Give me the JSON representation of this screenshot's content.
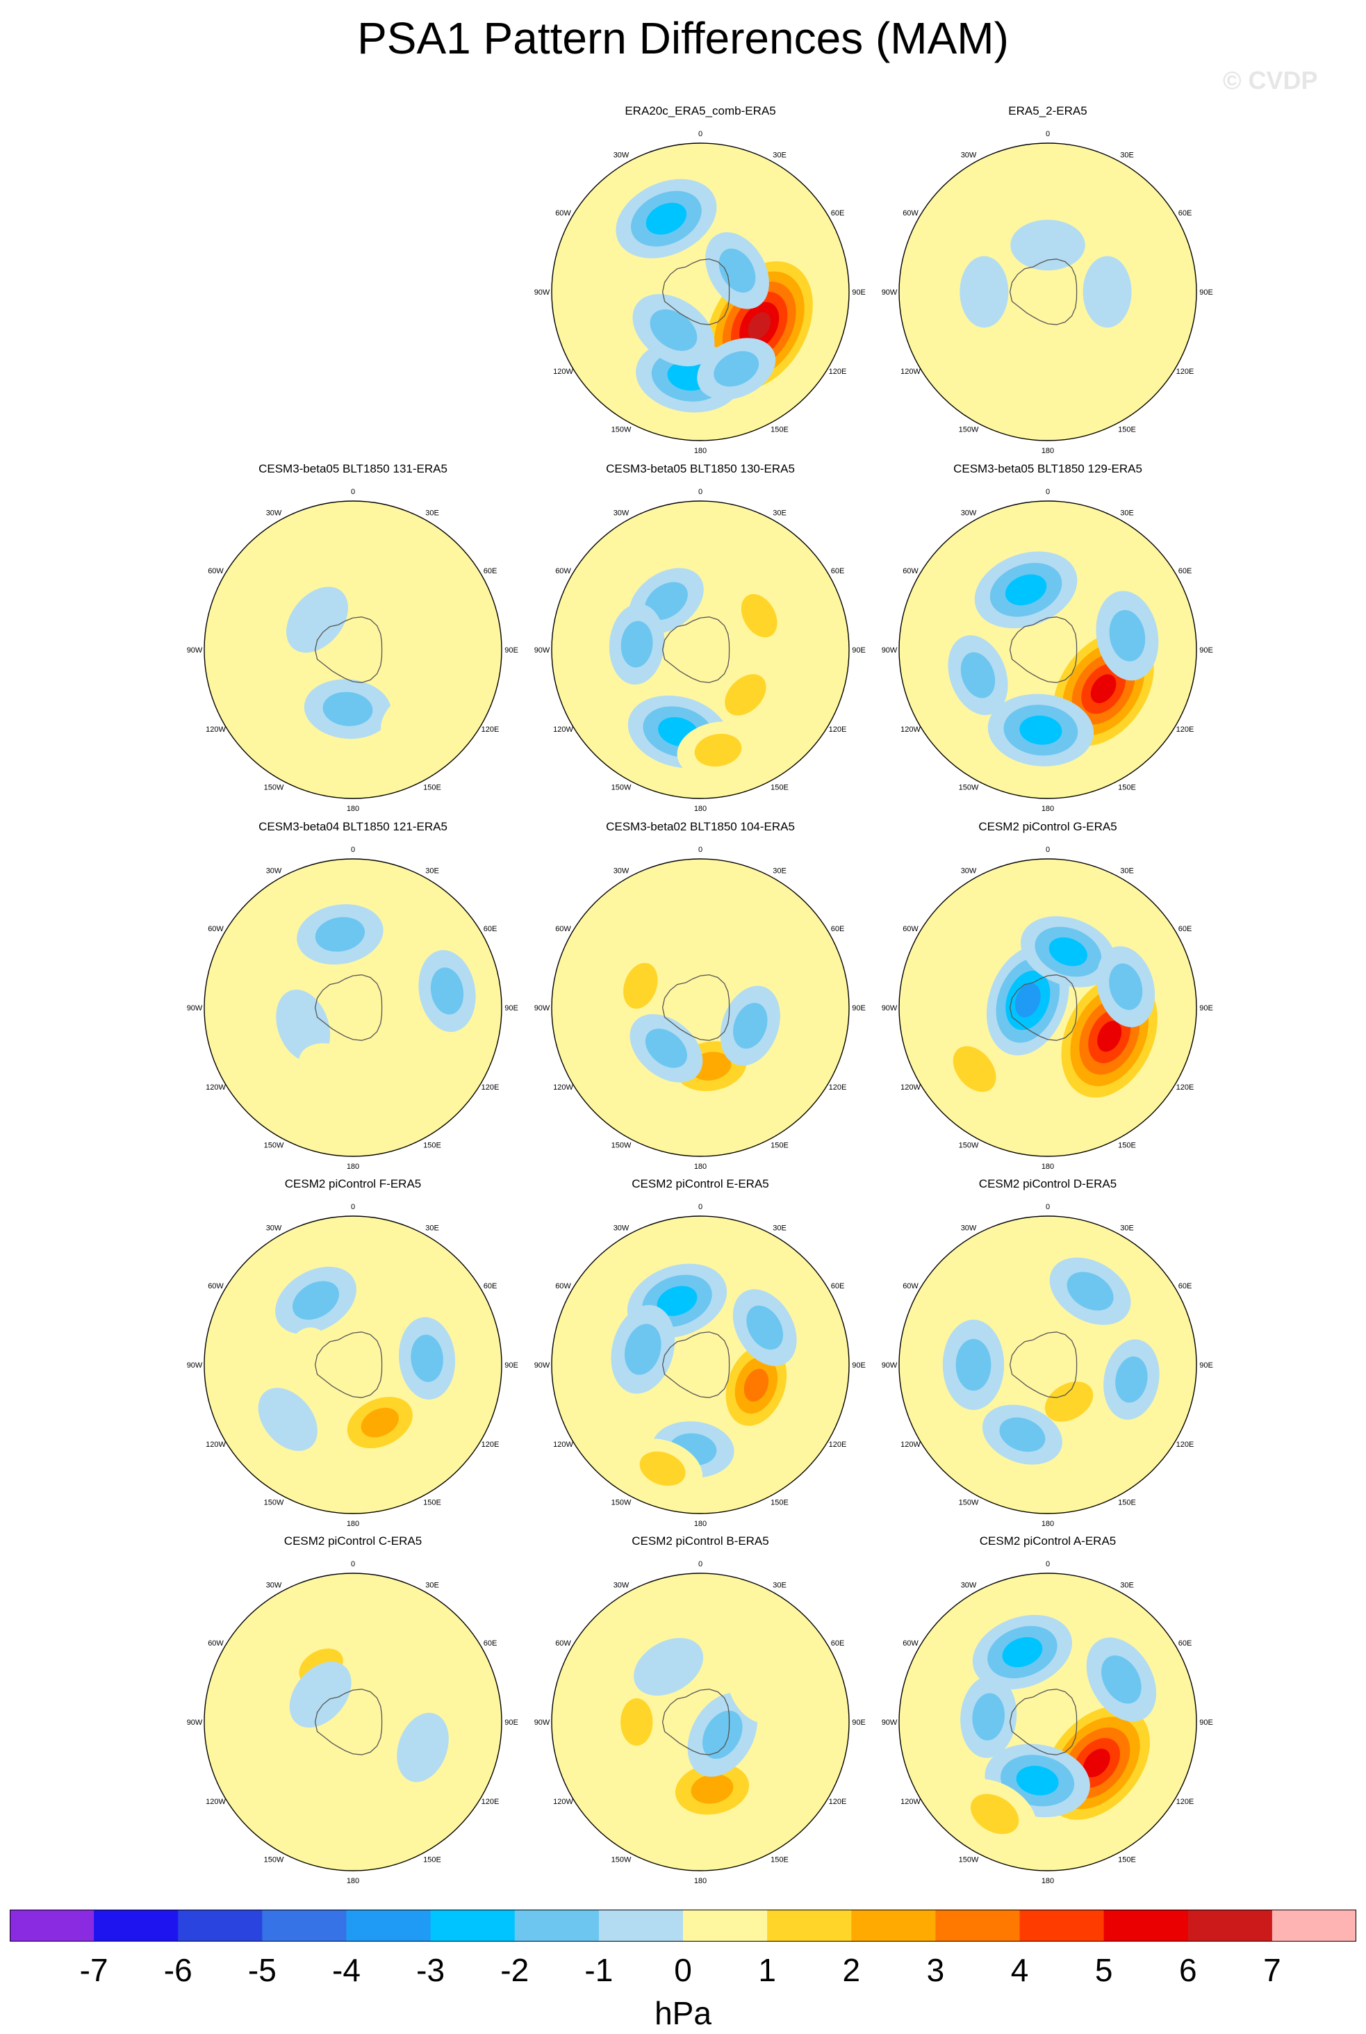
{
  "title": "PSA1 Pattern Differences (MAM)",
  "watermark": "© CVDP",
  "chart_data": {
    "type": "heatmap",
    "projection": "south polar stereographic",
    "variable": "sea level pressure difference",
    "units": "hPa",
    "colorbar": {
      "levels": [
        -7,
        -6,
        -5,
        -4,
        -3,
        -2,
        -1,
        0,
        1,
        2,
        3,
        4,
        5,
        6,
        7
      ],
      "tick_labels": [
        "-7",
        "-6",
        "-5",
        "-4",
        "-3",
        "-2",
        "-1",
        "0",
        "1",
        "2",
        "3",
        "4",
        "5",
        "6",
        "7"
      ],
      "colors": [
        "#8a2be2",
        "#1e14f0",
        "#2a44e0",
        "#3573e6",
        "#1f9bf5",
        "#00c4ff",
        "#6dc6f0",
        "#b3dcf2",
        "#fff7a0",
        "#ffd52a",
        "#ffaa00",
        "#ff7800",
        "#ff3c00",
        "#ea0000",
        "#cc1a1a",
        "#ffb4b4"
      ]
    },
    "lon_labels": [
      "0",
      "30E",
      "60E",
      "90E",
      "120E",
      "150E",
      "180",
      "150W",
      "120W",
      "90W",
      "60W",
      "30W"
    ],
    "panels": [
      {
        "title": "ERA20c_ERA5_comb-ERA5",
        "row": 0,
        "col": 1,
        "blobs": [
          {
            "lon": 120,
            "lat": -58,
            "val": 6.5
          },
          {
            "lon": -172,
            "lat": -50,
            "val": -3
          },
          {
            "lon": -145,
            "lat": -68,
            "val": -2
          },
          {
            "lon": -25,
            "lat": -52,
            "val": -3
          },
          {
            "lon": 60,
            "lat": -70,
            "val": -1.5
          },
          {
            "lon": 155,
            "lat": -50,
            "val": -1.5
          }
        ]
      },
      {
        "title": "ERA5_2-ERA5",
        "row": 0,
        "col": 2,
        "blobs": [
          {
            "lon": 0,
            "lat": -68,
            "val": -1
          },
          {
            "lon": -90,
            "lat": -60,
            "val": -0.8
          },
          {
            "lon": 90,
            "lat": -62,
            "val": -0.8
          },
          {
            "lon": 150,
            "lat": -52,
            "val": 0.8
          },
          {
            "lon": -150,
            "lat": -48,
            "val": 0.6
          }
        ]
      },
      {
        "title": "CESM3-beta05 BLT1850 131-ERA5",
        "row": 1,
        "col": 0,
        "blobs": [
          {
            "lon": -175,
            "lat": -62,
            "val": -1.8
          },
          {
            "lon": -50,
            "lat": -68,
            "val": -1
          },
          {
            "lon": 30,
            "lat": -60,
            "val": 0.6
          },
          {
            "lon": 140,
            "lat": -48,
            "val": 0.5
          }
        ]
      },
      {
        "title": "CESM3-beta05 BLT1850 130-ERA5",
        "row": 1,
        "col": 1,
        "blobs": [
          {
            "lon": 135,
            "lat": -60,
            "val": 1.6
          },
          {
            "lon": -165,
            "lat": -50,
            "val": -2.8
          },
          {
            "lon": 170,
            "lat": -42,
            "val": 1.5
          },
          {
            "lon": -35,
            "lat": -62,
            "val": -1.5
          },
          {
            "lon": 60,
            "lat": -58,
            "val": 1.4
          },
          {
            "lon": -85,
            "lat": -60,
            "val": -1.4
          }
        ]
      },
      {
        "title": "CESM3-beta05 BLT1850 129-ERA5",
        "row": 1,
        "col": 2,
        "blobs": [
          {
            "lon": 125,
            "lat": -58,
            "val": 5.8
          },
          {
            "lon": -175,
            "lat": -52,
            "val": -3
          },
          {
            "lon": -20,
            "lat": -60,
            "val": -3
          },
          {
            "lon": 80,
            "lat": -52,
            "val": -2
          },
          {
            "lon": -110,
            "lat": -55,
            "val": -1.5
          }
        ]
      },
      {
        "title": "CESM3-beta04 BLT1850 121-ERA5",
        "row": 2,
        "col": 0,
        "blobs": [
          {
            "lon": -10,
            "lat": -55,
            "val": -1.8
          },
          {
            "lon": -110,
            "lat": -65,
            "val": -1
          },
          {
            "lon": 80,
            "lat": -45,
            "val": -1.5
          },
          {
            "lon": 150,
            "lat": -55,
            "val": 0.7
          },
          {
            "lon": -160,
            "lat": -60,
            "val": 0.5
          }
        ]
      },
      {
        "title": "CESM3-beta02 BLT1850 104-ERA5",
        "row": 2,
        "col": 1,
        "blobs": [
          {
            "lon": 170,
            "lat": -62,
            "val": 2.8
          },
          {
            "lon": -70,
            "lat": -60,
            "val": 1.5
          },
          {
            "lon": 110,
            "lat": -65,
            "val": -1.5
          },
          {
            "lon": -140,
            "lat": -65,
            "val": -1.5
          },
          {
            "lon": 30,
            "lat": -50,
            "val": 0.6
          }
        ]
      },
      {
        "title": "CESM2 piControl G-ERA5",
        "row": 2,
        "col": 2,
        "blobs": [
          {
            "lon": 115,
            "lat": -58,
            "val": 6
          },
          {
            "lon": -70,
            "lat": -80,
            "val": -3.5
          },
          {
            "lon": -130,
            "lat": -45,
            "val": 2
          },
          {
            "lon": 20,
            "lat": -62,
            "val": -2.5
          },
          {
            "lon": 75,
            "lat": -52,
            "val": -1.5
          }
        ]
      },
      {
        "title": "CESM2 piControl F-ERA5",
        "row": 3,
        "col": 0,
        "blobs": [
          {
            "lon": 155,
            "lat": -60,
            "val": 2.5
          },
          {
            "lon": -30,
            "lat": -55,
            "val": -1.8
          },
          {
            "lon": 85,
            "lat": -55,
            "val": -1.5
          },
          {
            "lon": -90,
            "lat": -70,
            "val": 1
          },
          {
            "lon": -130,
            "lat": -50,
            "val": -0.8
          }
        ]
      },
      {
        "title": "CESM2 piControl E-ERA5",
        "row": 3,
        "col": 1,
        "blobs": [
          {
            "lon": 110,
            "lat": -62,
            "val": 3.2
          },
          {
            "lon": -20,
            "lat": -58,
            "val": -2.8
          },
          {
            "lon": -75,
            "lat": -62,
            "val": -2
          },
          {
            "lon": -175,
            "lat": -50,
            "val": -1.5
          },
          {
            "lon": -160,
            "lat": -38,
            "val": 1.5
          },
          {
            "lon": 60,
            "lat": -55,
            "val": -1.5
          }
        ]
      },
      {
        "title": "CESM2 piControl D-ERA5",
        "row": 3,
        "col": 2,
        "blobs": [
          {
            "lon": 150,
            "lat": -70,
            "val": 2
          },
          {
            "lon": -160,
            "lat": -55,
            "val": -1.5
          },
          {
            "lon": -90,
            "lat": -55,
            "val": -2
          },
          {
            "lon": 30,
            "lat": -50,
            "val": -1.8
          },
          {
            "lon": 100,
            "lat": -50,
            "val": -1.4
          }
        ]
      },
      {
        "title": "CESM2 piControl C-ERA5",
        "row": 4,
        "col": 0,
        "blobs": [
          {
            "lon": -30,
            "lat": -60,
            "val": 1.5
          },
          {
            "lon": -50,
            "lat": -70,
            "val": -1
          },
          {
            "lon": -150,
            "lat": -45,
            "val": 0.8
          },
          {
            "lon": 110,
            "lat": -55,
            "val": -0.8
          }
        ]
      },
      {
        "title": "CESM2 piControl B-ERA5",
        "row": 4,
        "col": 1,
        "blobs": [
          {
            "lon": 170,
            "lat": -58,
            "val": 3
          },
          {
            "lon": 120,
            "lat": -78,
            "val": -2
          },
          {
            "lon": -90,
            "lat": -60,
            "val": 1.5
          },
          {
            "lon": -30,
            "lat": -60,
            "val": -1
          },
          {
            "lon": 60,
            "lat": -60,
            "val": 0.8
          }
        ]
      },
      {
        "title": "CESM2 piControl A-ERA5",
        "row": 4,
        "col": 2,
        "blobs": [
          {
            "lon": 130,
            "lat": -60,
            "val": 6
          },
          {
            "lon": -170,
            "lat": -62,
            "val": -3
          },
          {
            "lon": -150,
            "lat": -40,
            "val": 2
          },
          {
            "lon": -20,
            "lat": -55,
            "val": -2.8
          },
          {
            "lon": 60,
            "lat": -50,
            "val": -2
          },
          {
            "lon": -85,
            "lat": -62,
            "val": -1.5
          }
        ]
      }
    ]
  }
}
